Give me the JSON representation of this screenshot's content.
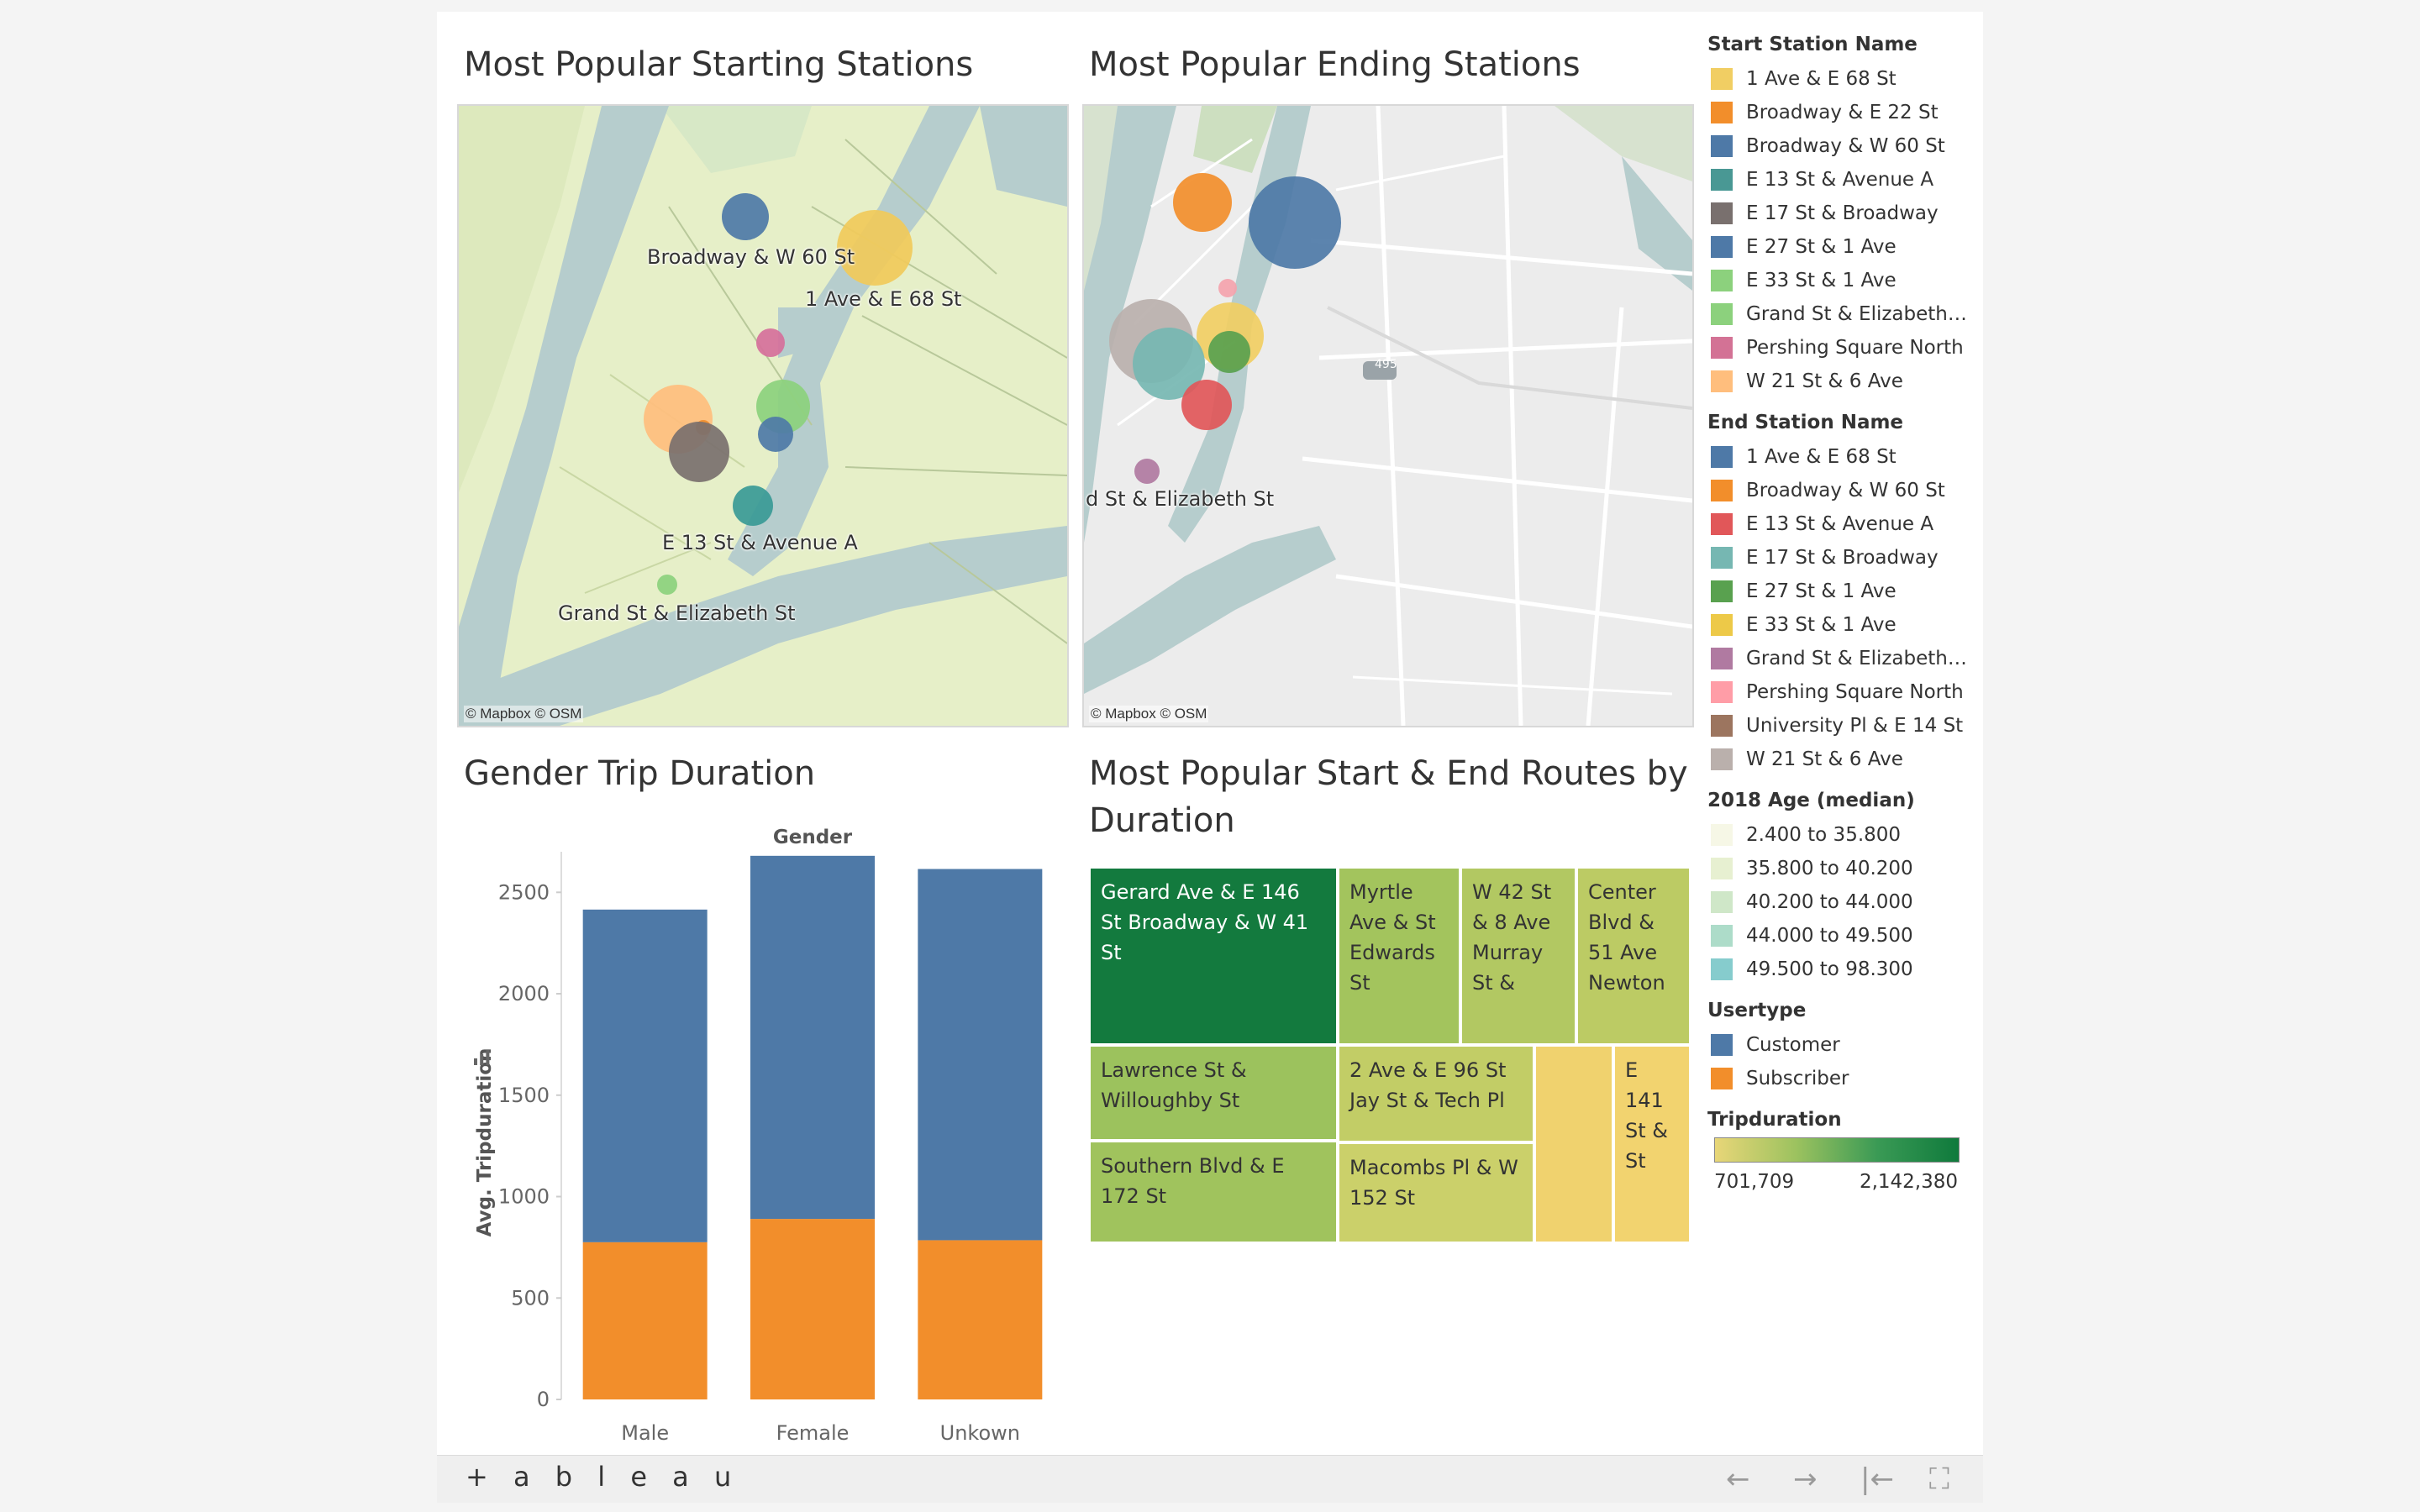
{
  "dashboard": {
    "titles": {
      "start_map": "Most Popular Starting Stations",
      "end_map": "Most Popular Ending Stations",
      "gender": "Gender Trip Duration",
      "routes_line1": "Most Popular Start & End Routes by",
      "routes_line2": "Duration"
    },
    "map_attribution": "© Mapbox  © OSM",
    "start_map_labels": [
      "Broadway & W 60 St",
      "1 Ave & E 68 St",
      "E 13 St & Avenue A",
      "Grand St & Elizabeth St"
    ],
    "end_map_labels": [
      "d St & Elizabeth St"
    ],
    "highway_shield": "495",
    "colors": {
      "water": "#b6cdcd",
      "land_start": "#e6efc8",
      "land_end": "#e9e9e9",
      "customer": "#4e79a7",
      "subscriber": "#f28e2b"
    }
  },
  "chart_data": [
    {
      "type": "bar",
      "title": "Gender Trip Duration",
      "column_header": "Gender",
      "xlabel": "",
      "ylabel": "Avg. Tripduration",
      "categories": [
        "Male",
        "Female",
        "Unkown"
      ],
      "stacked": true,
      "series": [
        {
          "name": "Subscriber",
          "color": "#f28e2b",
          "values": [
            775,
            890,
            785
          ]
        },
        {
          "name": "Customer",
          "color": "#4e79a7",
          "values": [
            1640,
            1790,
            1830
          ]
        }
      ],
      "ylim": [
        0,
        2700
      ],
      "yticks": [
        "0",
        "500",
        "1000",
        "1500",
        "2000",
        "2500"
      ],
      "grid": false
    },
    {
      "type": "treemap",
      "title": "Most Popular Start & End Routes by Duration",
      "color_by": "Tripduration",
      "tiles": [
        {
          "label": "Gerard Ave & E 146 St Broadway & W 41 St",
          "value": 2142380,
          "color": "#137a3e",
          "dark": true
        },
        {
          "label": "Myrtle Ave & St Edwards St",
          "value": 1100000,
          "color": "#a3c45d"
        },
        {
          "label": "W 42 St & 8 Ave Murray St &",
          "value": 1050000,
          "color": "#b2c862"
        },
        {
          "label": "Center Blvd & 51 Ave Newton",
          "value": 1000000,
          "color": "#bccb64"
        },
        {
          "label": "Lawrence St & Willoughby St",
          "value": 950000,
          "color": "#9cc25d"
        },
        {
          "label": "Southern Blvd & E 172 St",
          "value": 920000,
          "color": "#a0c35d"
        },
        {
          "label": "2 Ave & E 96 St Jay St & Tech Pl",
          "value": 880000,
          "color": "#c2cd66"
        },
        {
          "label": "Macombs Pl & W 152 St",
          "value": 850000,
          "color": "#cbd06a"
        },
        {
          "label": "",
          "value": 720000,
          "color": "#f0d26e"
        },
        {
          "label": "E 141 St & St",
          "value": 701709,
          "color": "#f2d36f"
        }
      ]
    },
    {
      "type": "scatter",
      "title": "Most Popular Starting Stations",
      "encoding": "map bubbles sized by trip count",
      "points": [
        {
          "name": "Broadway & W 60 St",
          "color": "#4e79a7"
        },
        {
          "name": "1 Ave & E 68 St",
          "color": "#f1ca5a"
        },
        {
          "name": "Pershing Square North",
          "color": "#d6709b"
        },
        {
          "name": "W 21 St & 6 Ave",
          "color": "#ffbe7d"
        },
        {
          "name": "Broadway & E 22 St",
          "color": "#f28e2b"
        },
        {
          "name": "E 33 St & 1 Ave",
          "color": "#8cd17d"
        },
        {
          "name": "E 27 St & 1 Ave",
          "color": "#4e79a7"
        },
        {
          "name": "E 17 St & Broadway",
          "color": "#79706e"
        },
        {
          "name": "E 13 St & Avenue A",
          "color": "#3a9a96"
        },
        {
          "name": "Grand St & Elizabeth St",
          "color": "#8cd17d"
        }
      ]
    },
    {
      "type": "scatter",
      "title": "Most Popular Ending Stations",
      "encoding": "map bubbles sized by trip count",
      "points": [
        {
          "name": "Broadway & W 60 St",
          "color": "#f28e2b"
        },
        {
          "name": "1 Ave & E 68 St",
          "color": "#4e79a7"
        },
        {
          "name": "Pershing Square North",
          "color": "#f4a3ad"
        },
        {
          "name": "W 21 St & 6 Ave",
          "color": "#bab0ac"
        },
        {
          "name": "E 33 St & 1 Ave",
          "color": "#f1ce63"
        },
        {
          "name": "E 17 St & Broadway",
          "color": "#76b7b2"
        },
        {
          "name": "E 27 St & 1 Ave",
          "color": "#59a14f"
        },
        {
          "name": "E 13 St & Avenue A",
          "color": "#e15759"
        },
        {
          "name": "Grand St & Elizabeth St",
          "color": "#b07aa1"
        }
      ]
    }
  ],
  "legend": {
    "start_station": {
      "title": "Start Station Name",
      "items": [
        {
          "label": "1 Ave & E 68 St",
          "color": "#f1ce63"
        },
        {
          "label": "Broadway & E 22 St",
          "color": "#f28e2b"
        },
        {
          "label": "Broadway & W 60 St",
          "color": "#4e79a7"
        },
        {
          "label": "E 13 St & Avenue A",
          "color": "#499894"
        },
        {
          "label": "E 17 St & Broadway",
          "color": "#79706e"
        },
        {
          "label": "E 27 St & 1 Ave",
          "color": "#4e79a7"
        },
        {
          "label": "E 33 St & 1 Ave",
          "color": "#8cd17d"
        },
        {
          "label": "Grand St & Elizabeth…",
          "color": "#8cd17d"
        },
        {
          "label": "Pershing Square North",
          "color": "#d37295"
        },
        {
          "label": "W 21 St & 6 Ave",
          "color": "#ffbe7d"
        }
      ]
    },
    "end_station": {
      "title": "End Station Name",
      "items": [
        {
          "label": "1 Ave & E 68 St",
          "color": "#4e79a7"
        },
        {
          "label": "Broadway & W 60 St",
          "color": "#f28e2b"
        },
        {
          "label": "E 13 St & Avenue A",
          "color": "#e15759"
        },
        {
          "label": "E 17 St & Broadway",
          "color": "#76b7b2"
        },
        {
          "label": "E 27 St & 1 Ave",
          "color": "#59a14f"
        },
        {
          "label": "E 33 St & 1 Ave",
          "color": "#edc948"
        },
        {
          "label": "Grand St & Elizabeth…",
          "color": "#b07aa1"
        },
        {
          "label": "Pershing Square North",
          "color": "#ff9da7"
        },
        {
          "label": "University Pl & E 14 St",
          "color": "#9c755f"
        },
        {
          "label": "W 21 St & 6 Ave",
          "color": "#bab0ac"
        }
      ]
    },
    "age": {
      "title": "2018 Age (median)",
      "items": [
        {
          "label": "2.400 to 35.800",
          "color": "#f6f7e6"
        },
        {
          "label": "35.800 to 40.200",
          "color": "#e7f0d1"
        },
        {
          "label": "40.200 to 44.000",
          "color": "#cfe7c8"
        },
        {
          "label": "44.000 to 49.500",
          "color": "#addcc9"
        },
        {
          "label": "49.500 to 98.300",
          "color": "#86cccd"
        }
      ]
    },
    "usertype": {
      "title": "Usertype",
      "items": [
        {
          "label": "Customer",
          "color": "#4e79a7"
        },
        {
          "label": "Subscriber",
          "color": "#f28e2b"
        }
      ]
    },
    "tripduration": {
      "title": "Tripduration",
      "min": "701,709",
      "max": "2,142,380"
    }
  },
  "footer": {
    "logo": "+ a b l e a u",
    "back": "←",
    "forward": "→",
    "reset": "|←",
    "fullscreen": "⛶"
  }
}
